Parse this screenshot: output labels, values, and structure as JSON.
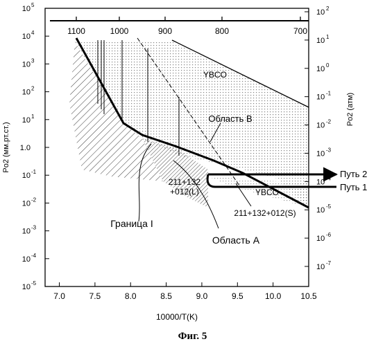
{
  "figure": {
    "caption": "Фиг. 5",
    "x_label": "10000/T(K)",
    "y_left_label": "Po2 (мм.рт.ст.)",
    "y_right_label": "Po2 (атм)"
  },
  "axes": {
    "x_ticks": [
      "7.0",
      "7.5",
      "8.0",
      "8.5",
      "9.0",
      "9.5",
      "10.0",
      "10.5"
    ],
    "y_left_ticks": [
      {
        "base": "10",
        "exp": "5"
      },
      {
        "base": "10",
        "exp": "4"
      },
      {
        "base": "10",
        "exp": "3"
      },
      {
        "base": "10",
        "exp": "2"
      },
      {
        "base": "10",
        "exp": "1"
      },
      {
        "base": "10",
        "exp": ""
      },
      {
        "base": "10",
        "exp": ""
      },
      {
        "base": "10",
        "exp": ""
      },
      {
        "base": "10",
        "exp": ""
      },
      {
        "base": "10",
        "exp": ""
      },
      {
        "base": "10",
        "exp": ""
      }
    ],
    "y_left_tick_text": [
      "10",
      "10",
      "10",
      "10",
      "10",
      "1.0",
      "10",
      "10",
      "10",
      "10",
      "10"
    ],
    "y_left_exps": [
      "5",
      "4",
      "3",
      "2",
      "1",
      "0",
      "-1",
      "-2",
      "-3",
      "-4",
      "-5"
    ],
    "y_right_exps": [
      "2",
      "1",
      "0",
      "-1",
      "-2",
      "-3",
      "-4",
      "-5",
      "-6",
      "-7"
    ],
    "temp_ticks": [
      "1100",
      "1000",
      "900",
      "800",
      "700"
    ]
  },
  "labels": {
    "ybco_upper": "YBCO",
    "ybco_lower": "YBCO",
    "region_b": "Область В",
    "region_a": "Область А",
    "boundary": "Граница I",
    "phase_liquid_1": "211+132",
    "phase_liquid_2": "+012(L)",
    "phase_solid": "211+132+012(S)",
    "path_2": "Путь 2",
    "path_1": "Путь 1"
  },
  "chart_data": {
    "type": "diagram",
    "x_axis": {
      "label": "10000/T(K)",
      "range": [
        6.8,
        10.5
      ]
    },
    "y_axis_left": {
      "label": "Po2 (мм.рт.ст.)",
      "scale": "log",
      "range": [
        1e-05,
        100000.0
      ]
    },
    "y_axis_right": {
      "label": "Po2 (атм)",
      "scale": "log",
      "range": [
        1e-07,
        100.0
      ]
    },
    "temperature_axis_ticks": [
      1100,
      1000,
      900,
      800,
      700
    ],
    "boundary_I": [
      [
        7.32,
        10000.0
      ],
      [
        7.92,
        8
      ],
      [
        8.2,
        2.3
      ],
      [
        8.6,
        0.9
      ],
      [
        9.1,
        0.28
      ],
      [
        9.55,
        0.08
      ],
      [
        10.45,
        0.004
      ]
    ],
    "ybco_upper_line": [
      [
        8.6,
        13000.0
      ],
      [
        10.45,
        28
      ]
    ],
    "path_2_level_mmHg": 0.12,
    "path_1_level_mmHg": 0.037,
    "labels": [
      "YBCO",
      "Область В",
      "Граница I",
      "211+132 +012(L)",
      "211+132+012(S)",
      "Область А",
      "Путь 2",
      "Путь 1"
    ]
  }
}
